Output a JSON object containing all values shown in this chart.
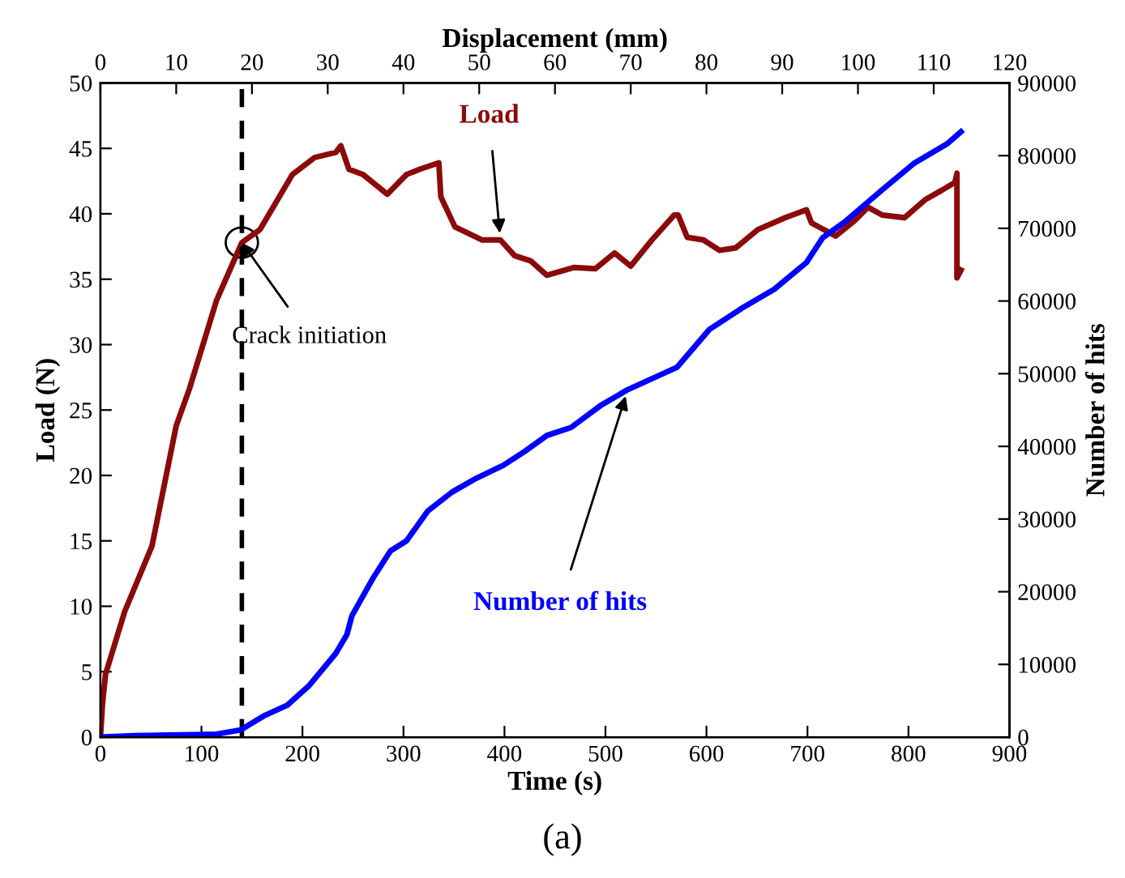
{
  "chart_data": {
    "type": "line",
    "xlabel": "Time (s)",
    "ylabel": "Load (N)",
    "y2label": "Number of hits",
    "x2label": "Displacement (mm)",
    "xlim": [
      0,
      900
    ],
    "xticks": [
      0,
      100,
      200,
      300,
      400,
      500,
      600,
      700,
      800,
      900
    ],
    "ylim": [
      0,
      50
    ],
    "yticks": [
      0,
      5,
      10,
      15,
      20,
      25,
      30,
      35,
      40,
      45,
      50
    ],
    "y2lim": [
      0,
      90000
    ],
    "y2ticks": [
      0,
      10000,
      20000,
      30000,
      40000,
      50000,
      60000,
      70000,
      80000,
      90000
    ],
    "x2lim": [
      0,
      120
    ],
    "x2ticks": [
      0,
      10,
      20,
      30,
      40,
      50,
      60,
      70,
      80,
      90,
      100,
      110,
      120
    ],
    "grid": false,
    "legend": false,
    "marker": "none",
    "line_style": "solid",
    "series": [
      {
        "name": "Load",
        "color": "#8b0a0a",
        "x": [
          0,
          2,
          5,
          24,
          51,
          75,
          88,
          115,
          140,
          158,
          190,
          212,
          233,
          238,
          246,
          260,
          284,
          303,
          316,
          335,
          337,
          351,
          378,
          396,
          410,
          426,
          442,
          469,
          490,
          509,
          525,
          546,
          568,
          572,
          581,
          597,
          613,
          629,
          651,
          678,
          699,
          704,
          728,
          747,
          760,
          774,
          796,
          817,
          833,
          846,
          848,
          848,
          852
        ],
        "values": [
          0,
          2.5,
          4.8,
          9.6,
          14.6,
          23.8,
          26.6,
          33.4,
          37.8,
          38.8,
          43.0,
          44.3,
          44.7,
          45.2,
          43.4,
          43.0,
          41.5,
          43.0,
          43.4,
          43.9,
          41.3,
          39.0,
          38.0,
          38.0,
          36.8,
          36.4,
          35.3,
          35.9,
          35.8,
          37.0,
          36.0,
          38.0,
          39.9,
          39.9,
          38.2,
          38.0,
          37.2,
          37.4,
          38.8,
          39.7,
          40.3,
          39.3,
          38.3,
          39.5,
          40.5,
          39.9,
          39.7,
          41.1,
          41.8,
          42.4,
          43.1,
          35.1,
          35.7
        ]
      },
      {
        "name": "Number of hits",
        "color": "#0000ff",
        "axis": "y2",
        "x": [
          0,
          35,
          115,
          139,
          163,
          185,
          206,
          233,
          244,
          249,
          270,
          287,
          303,
          324,
          348,
          372,
          399,
          420,
          442,
          466,
          495,
          522,
          571,
          603,
          635,
          667,
          699,
          715,
          737,
          774,
          806,
          838,
          852
        ],
        "values": [
          0,
          200,
          400,
          1000,
          3000,
          4400,
          7000,
          11500,
          14100,
          16700,
          21900,
          25600,
          27000,
          31100,
          33700,
          35600,
          37400,
          39300,
          41500,
          42600,
          45600,
          47800,
          50900,
          56100,
          59000,
          61600,
          65300,
          68700,
          70900,
          75300,
          79000,
          81600,
          83300
        ]
      }
    ],
    "ref_lines": [
      {
        "axis": "x",
        "value": 140,
        "color": "#000000",
        "line_style": "dashed"
      }
    ],
    "annotations": [
      {
        "text": "Crack initiation",
        "x": 140,
        "y": 37.8
      },
      "(a)"
    ]
  }
}
